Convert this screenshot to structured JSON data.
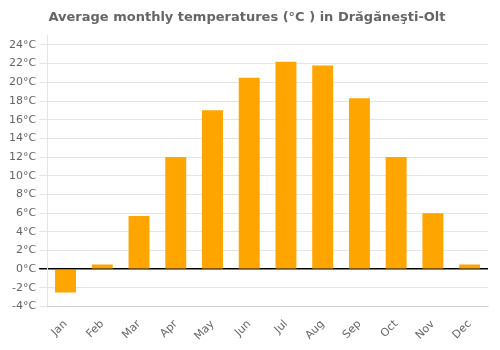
{
  "chart_data": {
    "type": "bar",
    "title": "Average monthly temperatures (°C ) in Drăgăneşti-Olt",
    "categories": [
      "Jan",
      "Feb",
      "Mar",
      "Apr",
      "May",
      "Jun",
      "Jul",
      "Aug",
      "Sep",
      "Oct",
      "Nov",
      "Dec"
    ],
    "values": [
      -2.5,
      0.5,
      5.7,
      12.0,
      17.0,
      20.5,
      22.2,
      21.8,
      18.3,
      12.0,
      6.0,
      0.5
    ],
    "color": "#FFA500",
    "ylim": [
      -4,
      25
    ],
    "yticks": [
      {
        "value": -4,
        "label": "-4°C"
      },
      {
        "value": -2,
        "label": "-2°C"
      },
      {
        "value": 0,
        "label": "0°C"
      },
      {
        "value": 2,
        "label": "2°C"
      },
      {
        "value": 4,
        "label": "4°C"
      },
      {
        "value": 6,
        "label": "6°C"
      },
      {
        "value": 8,
        "label": "8°C"
      },
      {
        "value": 10,
        "label": "10°C"
      },
      {
        "value": 12,
        "label": "12°C"
      },
      {
        "value": 14,
        "label": "14°C"
      },
      {
        "value": 16,
        "label": "16°C"
      },
      {
        "value": 18,
        "label": "18°C"
      },
      {
        "value": 20,
        "label": "20°C"
      },
      {
        "value": 22,
        "label": "22°C"
      },
      {
        "value": 24,
        "label": "24°C"
      }
    ],
    "grid": true
  }
}
